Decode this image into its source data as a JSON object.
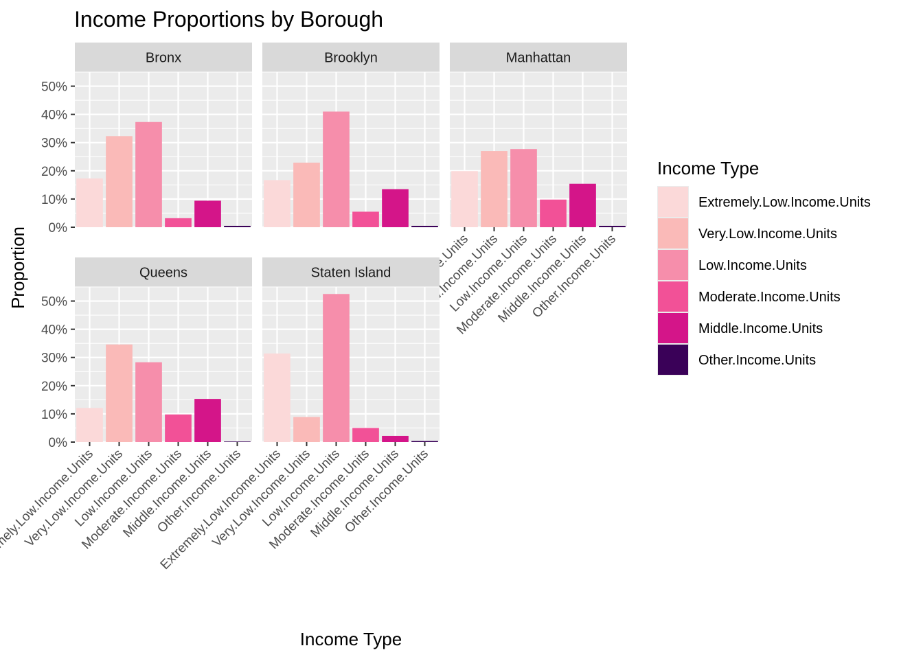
{
  "chart_data": {
    "type": "bar",
    "title": "Income Proportions by Borough",
    "xlabel": "Income Type",
    "ylabel": "Proportion",
    "ylim": [
      0,
      0.55
    ],
    "y_ticks": [
      "0%",
      "10%",
      "20%",
      "30%",
      "40%",
      "50%"
    ],
    "y_tick_values": [
      0,
      0.1,
      0.2,
      0.3,
      0.4,
      0.5
    ],
    "categories": [
      "Extremely.Low.Income.Units",
      "Very.Low.Income.Units",
      "Low.Income.Units",
      "Moderate.Income.Units",
      "Middle.Income.Units",
      "Other.Income.Units"
    ],
    "colors": [
      "#FBD9D9",
      "#FABAB8",
      "#F68EAB",
      "#F25197",
      "#D41589",
      "#3A0158"
    ],
    "legend": {
      "title": "Income Type",
      "placement": "right",
      "entries": [
        "Extremely.Low.Income.Units",
        "Very.Low.Income.Units",
        "Low.Income.Units",
        "Moderate.Income.Units",
        "Middle.Income.Units",
        "Other.Income.Units"
      ]
    },
    "grid": true,
    "facets": [
      {
        "name": "Bronx",
        "values": [
          0.173,
          0.323,
          0.373,
          0.032,
          0.094,
          0.005
        ]
      },
      {
        "name": "Brooklyn",
        "values": [
          0.167,
          0.229,
          0.41,
          0.055,
          0.135,
          0.005
        ]
      },
      {
        "name": "Manhattan",
        "values": [
          0.199,
          0.27,
          0.277,
          0.098,
          0.154,
          0.005
        ]
      },
      {
        "name": "Queens",
        "values": [
          0.121,
          0.346,
          0.283,
          0.098,
          0.153,
          0.002
        ]
      },
      {
        "name": "Staten Island",
        "values": [
          0.314,
          0.089,
          0.525,
          0.05,
          0.022,
          0.004
        ]
      }
    ]
  }
}
